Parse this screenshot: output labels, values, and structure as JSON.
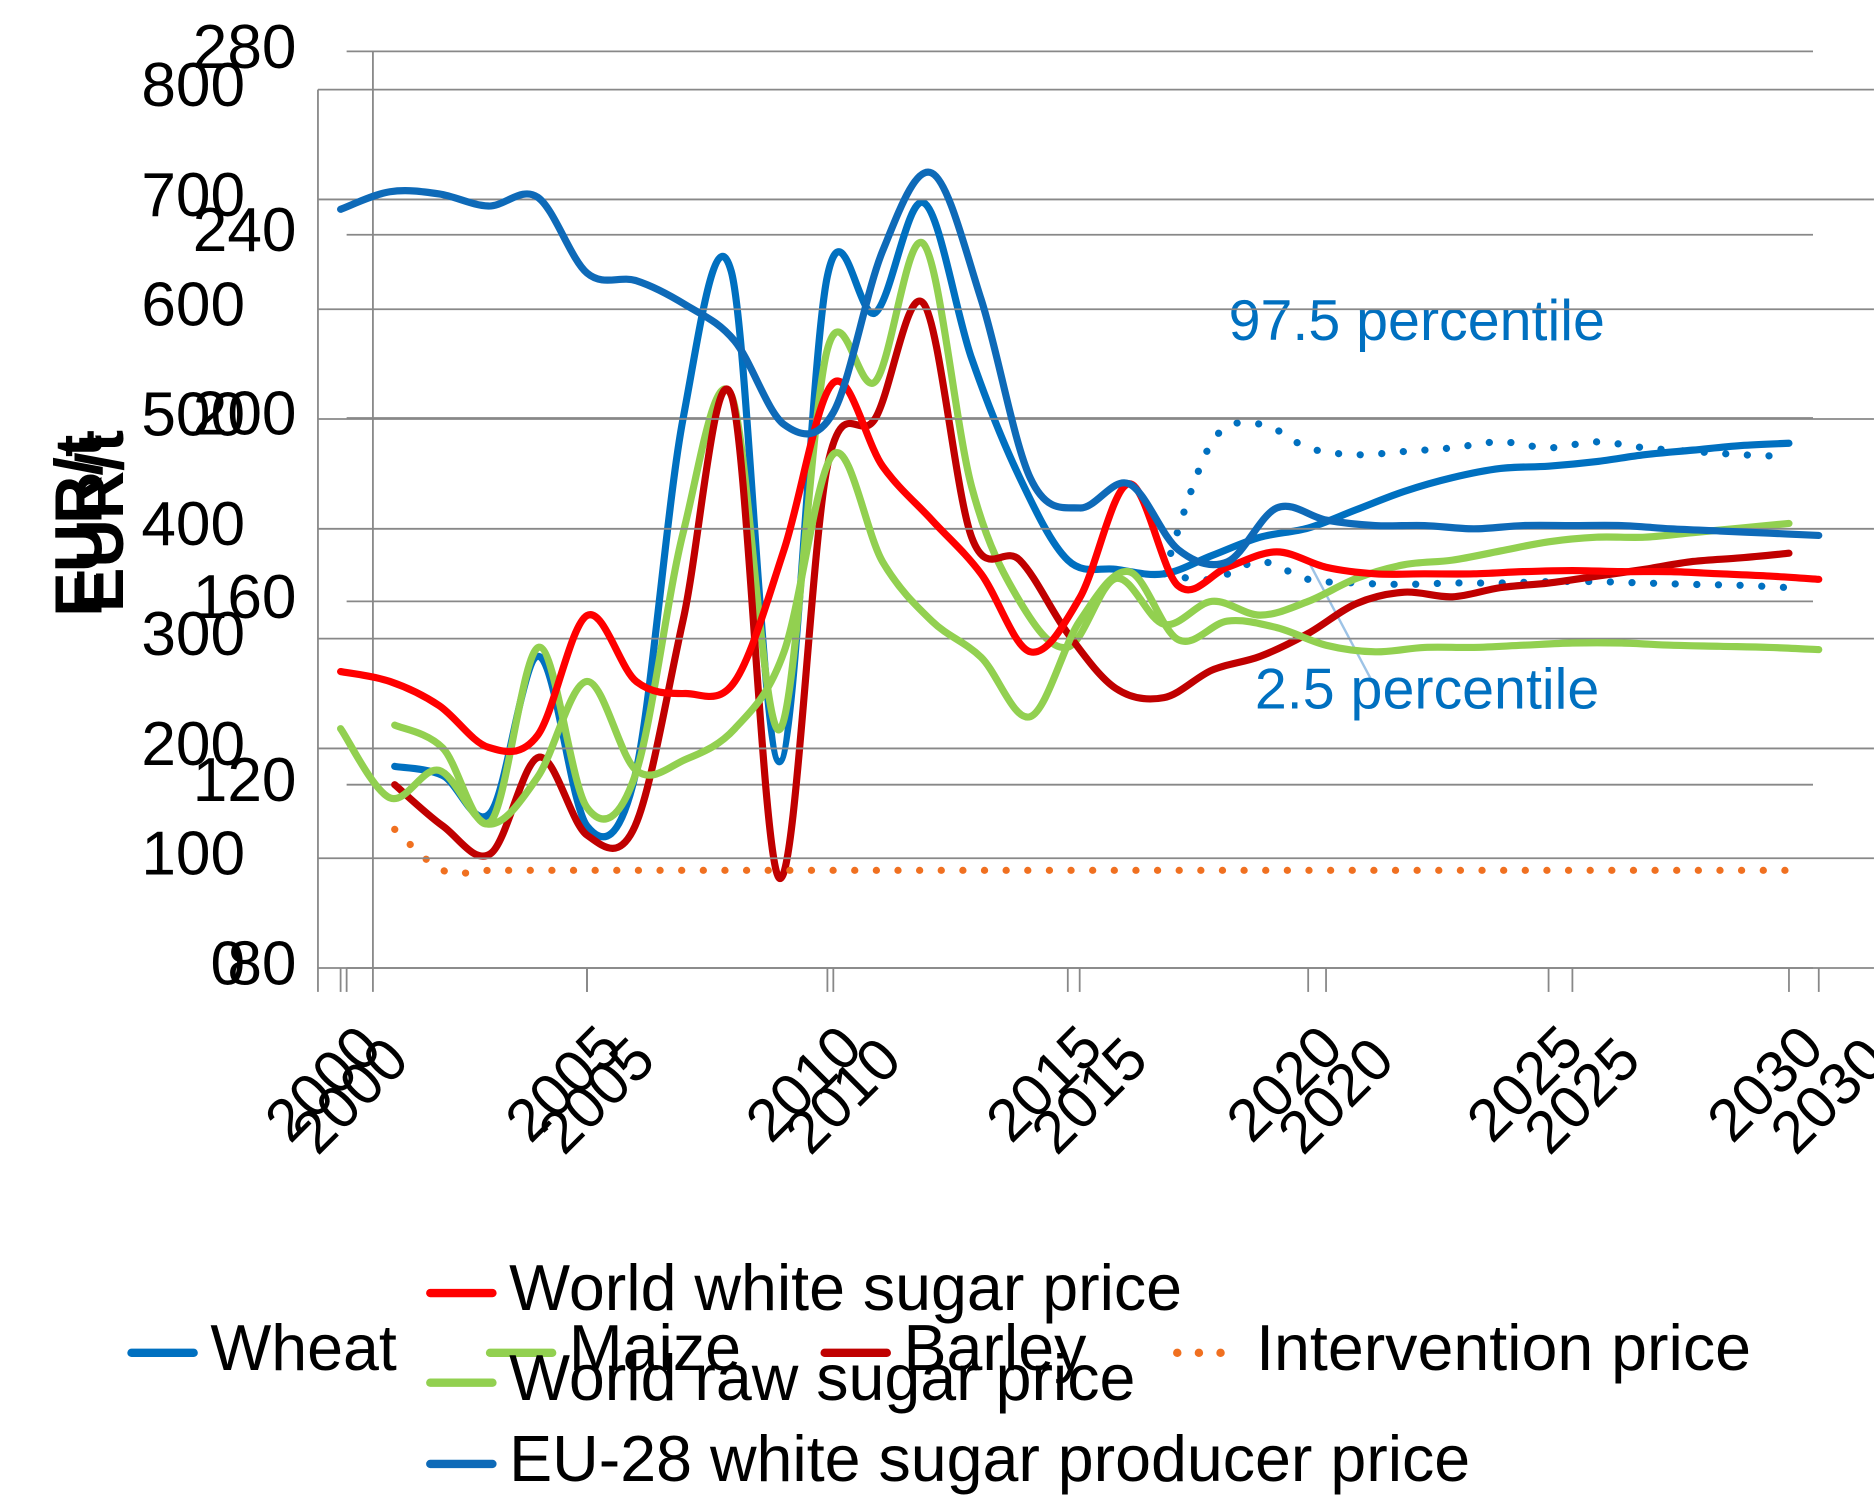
{
  "chart_data": [
    {
      "type": "line",
      "ylabel": "EUR/t",
      "x": [
        2000,
        2001,
        2002,
        2003,
        2004,
        2005,
        2006,
        2007,
        2008,
        2009,
        2010,
        2011,
        2012,
        2013,
        2014,
        2015,
        2016,
        2017,
        2018,
        2019,
        2020,
        2021,
        2022,
        2023,
        2024,
        2025,
        2026,
        2027,
        2028,
        2029,
        2030
      ],
      "xlim": [
        2000,
        2030.5
      ],
      "xticks": [
        2000,
        2005,
        2010,
        2015,
        2020,
        2025,
        2030
      ],
      "ylim": [
        80,
        280
      ],
      "yticks": [
        80,
        120,
        160,
        200,
        240,
        280
      ],
      "grid": true,
      "legend": "bottom",
      "series": [
        {
          "name": "Wheat",
          "color": "#0070c0",
          "line_style": "solid",
          "values": [
            null,
            124,
            122,
            114,
            148,
            111,
            122,
            200,
            232,
            125,
            231,
            223,
            247,
            213,
            187,
            169,
            167,
            166,
            170,
            174,
            176,
            180,
            184,
            187,
            189,
            189.5,
            190.5,
            192,
            193,
            194,
            194.5
          ]
        },
        {
          "name": "Maize",
          "color": "#92d050",
          "line_style": "solid",
          "values": [
            null,
            133,
            128,
            112,
            150,
            115,
            122,
            175,
            205,
            132,
            215,
            208,
            238,
            185,
            160,
            150,
            165,
            155,
            160,
            157,
            160,
            165,
            168,
            169,
            171,
            173,
            174,
            174,
            175,
            176,
            177
          ]
        },
        {
          "name": "Barley",
          "color": "#c00000",
          "line_style": "solid",
          "values": [
            null,
            120,
            111,
            105,
            126,
            109,
            111,
            156,
            205,
            99.6,
            189.5,
            200,
            225,
            174,
            169,
            153,
            141,
            139,
            145,
            148,
            153,
            159.5,
            162,
            161,
            163,
            164,
            165.5,
            167,
            168.7,
            169.5,
            170.5
          ]
        },
        {
          "name": "Intervention price",
          "color": "#f07020",
          "line_style": "dotted",
          "values": [
            null,
            110.25,
            101.31,
            101.31,
            101.31,
            101.31,
            101.31,
            101.31,
            101.31,
            101.31,
            101.31,
            101.31,
            101.31,
            101.31,
            101.31,
            101.31,
            101.31,
            101.31,
            101.31,
            101.31,
            101.31,
            101.31,
            101.31,
            101.31,
            101.31,
            101.31,
            101.31,
            101.31,
            101.31,
            101.31,
            101.31
          ]
        }
      ],
      "bands": [
        {
          "name": "97.5 percentile",
          "color": "#0070c0",
          "line_style": "dotted",
          "values": [
            null,
            null,
            null,
            null,
            null,
            null,
            null,
            null,
            null,
            null,
            null,
            null,
            null,
            null,
            null,
            null,
            null,
            166,
            194.8,
            198.7,
            193.5,
            192,
            192.7,
            193.5,
            194.8,
            193.5,
            194.8,
            193.5,
            192.7,
            192,
            191.6
          ]
        },
        {
          "name": "2.5 percentile",
          "color": "#0070c0",
          "line_style": "dotted",
          "values": [
            null,
            null,
            null,
            null,
            null,
            null,
            null,
            null,
            null,
            null,
            null,
            null,
            null,
            null,
            null,
            null,
            null,
            166,
            164.8,
            168.7,
            164.8,
            164,
            163.7,
            164,
            164,
            164.3,
            164.3,
            164,
            163.7,
            163.5,
            163
          ]
        }
      ]
    },
    {
      "type": "line",
      "ylabel": "EUR/t",
      "x": [
        2000,
        2001,
        2002,
        2003,
        2004,
        2005,
        2006,
        2007,
        2008,
        2009,
        2010,
        2011,
        2012,
        2013,
        2014,
        2015,
        2016,
        2017,
        2018,
        2019,
        2020,
        2021,
        2022,
        2023,
        2024,
        2025,
        2026,
        2027,
        2028,
        2029,
        2030
      ],
      "xlim": [
        1999.54,
        2031.12
      ],
      "xticks": [
        2000,
        2005,
        2010,
        2015,
        2020,
        2025,
        2030
      ],
      "ylim": [
        0,
        800
      ],
      "yticks": [
        0,
        100,
        200,
        300,
        400,
        500,
        600,
        700,
        800
      ],
      "grid": true,
      "legend": "bottom",
      "series": [
        {
          "name": "World white sugar price",
          "color": "#ff0000",
          "line_style": "solid",
          "values": [
            270,
            261,
            239,
            201,
            212,
            321,
            261,
            250,
            261,
            381,
            533,
            457,
            408,
            359,
            288,
            337,
            441,
            348,
            365,
            379,
            365,
            359,
            359,
            359,
            361,
            362,
            361,
            361,
            359,
            357,
            354
          ]
        },
        {
          "name": "World raw sugar price",
          "color": "#92d050",
          "line_style": "solid",
          "values": [
            218,
            155,
            180,
            131,
            174,
            261,
            180,
            190,
            218,
            288,
            468,
            370,
            316,
            283,
            229,
            316,
            361,
            299,
            316,
            310,
            294,
            288,
            292,
            292,
            294,
            296,
            296,
            294,
            293,
            292,
            290
          ]
        },
        {
          "name": "EU-28 white sugar producer price",
          "color": "#0e6ab8",
          "line_style": "solid",
          "values": [
            691,
            707,
            705,
            694,
            702,
            633,
            626,
            604,
            571,
            495,
            506,
            653,
            724,
            609,
            446,
            419,
            441,
            381,
            370,
            419,
            408,
            403,
            403,
            400,
            403,
            403,
            403,
            400,
            398,
            396,
            394
          ]
        }
      ]
    }
  ]
}
